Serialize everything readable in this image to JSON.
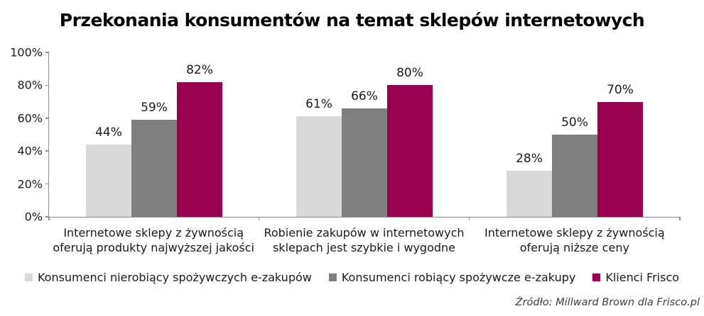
{
  "chart_data": {
    "type": "bar",
    "title": "Przekonania konsumentów na temat sklepów internetowych",
    "categories": [
      "Internetowe sklepy z żywnością oferują produkty najwyższej jakości",
      "Robienie zakupów w internetowych sklepach jest szybkie i wygodne",
      "Internetowe sklepy z żywnością oferują niższe ceny"
    ],
    "series": [
      {
        "name": "Konsumenci nierobiący spożywczych e-zakupów",
        "color": "#D9D9D9",
        "values": [
          44,
          61,
          28
        ]
      },
      {
        "name": "Konsumenci robiący spożywcze e-zakupy",
        "color": "#7F7F7F",
        "values": [
          59,
          66,
          50
        ]
      },
      {
        "name": "Klienci Frisco",
        "color": "#98014F",
        "values": [
          82,
          80,
          70
        ]
      }
    ],
    "value_suffix": "%",
    "ylim": [
      0,
      100
    ],
    "yticks": [
      "0%",
      "20%",
      "40%",
      "60%",
      "80%",
      "100%"
    ],
    "grid": false,
    "legend_position": "bottom",
    "source": "Źródło: Millward Brown dla Frisco.pl"
  }
}
